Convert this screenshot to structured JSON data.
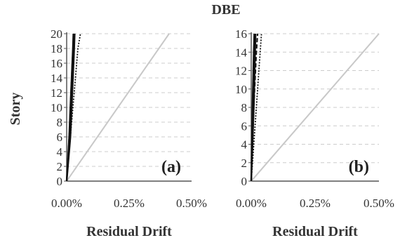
{
  "title": "DBE",
  "colors": {
    "grid": "#cccccc",
    "axis": "#555555",
    "reference": "#c8c8c8",
    "series": "#111111"
  },
  "chart_data": [
    {
      "type": "line",
      "panel_label": "(a)",
      "xlabel": "Residual Drift",
      "ylabel": "Story",
      "xlim": [
        0,
        0.5
      ],
      "ylim": [
        0,
        20
      ],
      "x_ticks": [
        {
          "value": 0,
          "label": "0.00%"
        },
        {
          "value": 0.25,
          "label": "0.25%"
        },
        {
          "value": 0.5,
          "label": "0.50%"
        }
      ],
      "y_ticks": [
        0,
        2,
        4,
        6,
        8,
        10,
        12,
        14,
        16,
        18,
        20
      ],
      "grid": "horizontal dashed",
      "series": [
        {
          "style": "reference",
          "points": [
            [
              0,
              0
            ],
            [
              0.41,
              20
            ]
          ]
        },
        {
          "style": "solid",
          "points": [
            [
              0,
              0
            ],
            [
              0.01,
              6
            ],
            [
              0.015,
              10
            ],
            [
              0.02,
              14
            ],
            [
              0.025,
              18
            ],
            [
              0.027,
              20
            ]
          ]
        },
        {
          "style": "solid",
          "points": [
            [
              0,
              0
            ],
            [
              0.015,
              6
            ],
            [
              0.02,
              10
            ],
            [
              0.025,
              14
            ],
            [
              0.03,
              18
            ],
            [
              0.032,
              20
            ]
          ]
        },
        {
          "style": "dashed",
          "points": [
            [
              0,
              0
            ],
            [
              0.01,
              6
            ],
            [
              0.015,
              10
            ],
            [
              0.02,
              14
            ],
            [
              0.025,
              18
            ],
            [
              0.03,
              20
            ]
          ]
        },
        {
          "style": "dotted",
          "points": [
            [
              0,
              0
            ],
            [
              0.015,
              6
            ],
            [
              0.025,
              10
            ],
            [
              0.035,
              14
            ],
            [
              0.045,
              18
            ],
            [
              0.055,
              20
            ]
          ]
        }
      ]
    },
    {
      "type": "line",
      "panel_label": "(b)",
      "xlabel": "Residual Drift",
      "ylabel": "",
      "xlim": [
        0,
        0.5
      ],
      "ylim": [
        0,
        16
      ],
      "x_ticks": [
        {
          "value": 0,
          "label": "0.00%"
        },
        {
          "value": 0.25,
          "label": "0.25%"
        },
        {
          "value": 0.5,
          "label": "0.50%"
        }
      ],
      "y_ticks": [
        0,
        2,
        4,
        6,
        8,
        10,
        12,
        14,
        16
      ],
      "grid": "horizontal dashed",
      "series": [
        {
          "style": "reference",
          "points": [
            [
              0,
              0
            ],
            [
              0.5,
              16
            ]
          ]
        },
        {
          "style": "solid",
          "points": [
            [
              0,
              0
            ],
            [
              0.005,
              8
            ],
            [
              0.01,
              14
            ],
            [
              0.012,
              16
            ]
          ]
        },
        {
          "style": "solid",
          "points": [
            [
              0,
              0
            ],
            [
              0.01,
              8
            ],
            [
              0.015,
              14
            ],
            [
              0.017,
              16
            ]
          ]
        },
        {
          "style": "dashed",
          "points": [
            [
              0,
              0
            ],
            [
              0.01,
              8
            ],
            [
              0.02,
              14
            ],
            [
              0.025,
              16
            ]
          ]
        },
        {
          "style": "dotted",
          "points": [
            [
              0,
              0
            ],
            [
              0.02,
              8
            ],
            [
              0.03,
              12
            ],
            [
              0.04,
              16
            ]
          ]
        }
      ]
    }
  ]
}
